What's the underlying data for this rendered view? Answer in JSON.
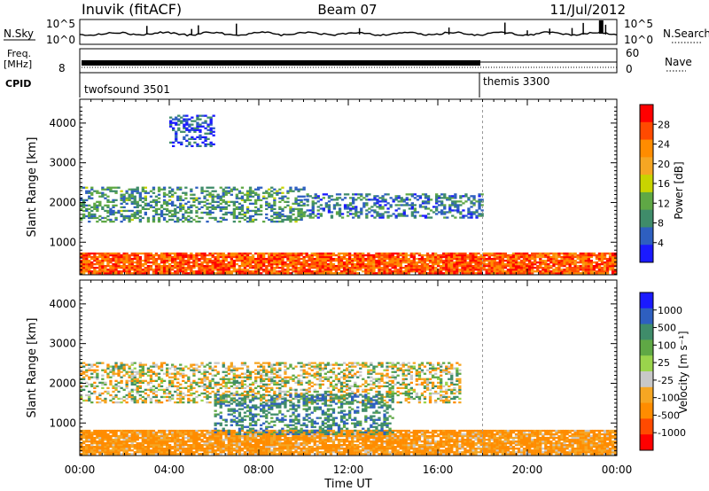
{
  "header": {
    "station": "Inuvik (fitACF)",
    "beam": "Beam 07",
    "date": "11/Jul/2012"
  },
  "top_panels": {
    "nsky_label": "N.Sky",
    "nsearch_label": "N.Search",
    "noise_ticks": [
      "10^5",
      "10^0"
    ],
    "freq_label": "Freq.",
    "freq_unit": "[MHz]",
    "freq_tick": "8",
    "nave_label": "Nave",
    "nave_ticks": [
      "60",
      "0"
    ],
    "cpid_label": "CPID",
    "cpid_modes": [
      {
        "name": "twofsound 3501",
        "start_hour": 0
      },
      {
        "name": "themis 3300",
        "start_hour": 18
      }
    ]
  },
  "chart_data": [
    {
      "type": "heatmap",
      "name": "power",
      "xlabel": "",
      "ylabel": "Slant Range [km]",
      "ylim": [
        180,
        4600
      ],
      "yticks": [
        1000,
        2000,
        3000,
        4000
      ],
      "colorbar_label": "Power [dB]",
      "colorbar_ticks": [
        "28",
        "24",
        "20",
        "16",
        "12",
        "8",
        "4"
      ],
      "colorbar_colors": [
        "#ff0000",
        "#ff4a00",
        "#ff8c00",
        "#f5a623",
        "#c8d400",
        "#5fa845",
        "#3f8c6a",
        "#2e5fc0",
        "#1a1aff"
      ],
      "x_range_hours": [
        0,
        24
      ],
      "cpid_boundary_hour": 18,
      "regions": [
        {
          "x": [
            0,
            24
          ],
          "y": [
            200,
            700
          ],
          "value_db": 26,
          "note": "near-range strong echoes"
        },
        {
          "x": [
            0,
            10
          ],
          "y": [
            1500,
            2400
          ],
          "value_db": 10
        },
        {
          "x": [
            10,
            18
          ],
          "y": [
            1600,
            2200
          ],
          "value_db": 8
        },
        {
          "x": [
            4,
            6
          ],
          "y": [
            3400,
            4200
          ],
          "value_db": 6
        }
      ]
    },
    {
      "type": "heatmap",
      "name": "velocity",
      "xlabel": "Time UT",
      "ylabel": "Slant Range [km]",
      "ylim": [
        180,
        4600
      ],
      "yticks": [
        1000,
        2000,
        3000,
        4000
      ],
      "xticks": [
        "00:00",
        "04:00",
        "08:00",
        "12:00",
        "16:00",
        "20:00",
        "00:00"
      ],
      "colorbar_label": "Velocity [m s⁻¹]",
      "colorbar_ticks": [
        "1000",
        "500",
        "100",
        "25",
        "-25",
        "-100",
        "-500",
        "-1000"
      ],
      "colorbar_colors": [
        "#1a1aff",
        "#2e5fc0",
        "#3f8c6a",
        "#5fa845",
        "#9ad44c",
        "#c8c8c8",
        "#f5a623",
        "#ff8c00",
        "#ff4a00",
        "#ff0000"
      ],
      "x_range_hours": [
        0,
        24
      ],
      "cpid_boundary_hour": 18,
      "regions": [
        {
          "x": [
            0,
            24
          ],
          "y": [
            200,
            800
          ],
          "value_ms": -150
        },
        {
          "x": [
            0,
            17
          ],
          "y": [
            1500,
            2500
          ],
          "value_ms": 0
        },
        {
          "x": [
            6,
            14
          ],
          "y": [
            700,
            1700
          ],
          "value_ms": 200
        }
      ]
    }
  ]
}
